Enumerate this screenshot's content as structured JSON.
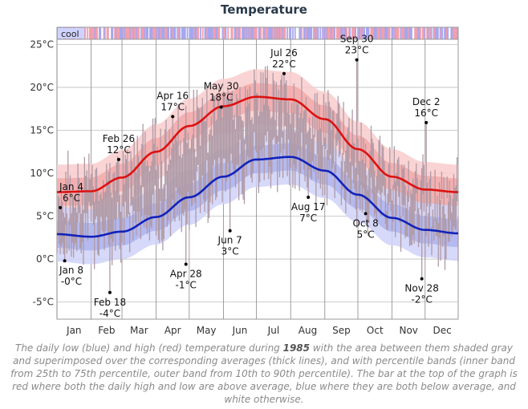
{
  "title": "Temperature",
  "caption": {
    "pre": "The daily low (blue) and high (red) temperature during ",
    "year": "1985",
    "post": " with the area between them shaded gray and superimposed over the corresponding averages (thick lines), and with percentile bands (inner band from 25th to 75th percentile, outer band from 10th to 90th percentile). The bar at the top of the graph is red where both the daily high and low are above average, blue where they are both below average, and white otherwise."
  },
  "colors": {
    "high": "#dd1111",
    "low": "#1122bb",
    "high_band_outer": "#f9cccc",
    "high_band_inner": "#f2a9a9",
    "low_band_outer": "#cfd2f8",
    "low_band_inner": "#aeb3ee",
    "daily_bar": "#b09aa6",
    "above_avg": "#f2a0ad",
    "below_avg": "#a7a7ef"
  },
  "chart_data": {
    "type": "area",
    "year": 1985,
    "y_unit": "°C",
    "ylim": [
      -7,
      27
    ],
    "y_ticks": [
      -5,
      0,
      5,
      10,
      15,
      20,
      25
    ],
    "y_tick_labels": [
      "-5°C",
      "0°C",
      "5°C",
      "10°C",
      "15°C",
      "20°C",
      "25°C"
    ],
    "x_day_range": [
      1,
      365
    ],
    "x_months": [
      "Jan",
      "Feb",
      "Mar",
      "Apr",
      "May",
      "Jun",
      "Jul",
      "Aug",
      "Sep",
      "Oct",
      "Nov",
      "Dec"
    ],
    "month_start_days": [
      1,
      32,
      60,
      91,
      121,
      152,
      182,
      213,
      244,
      274,
      305,
      335
    ],
    "grid": true,
    "legend_bar_label": "cool",
    "average_high": {
      "x": [
        1,
        32,
        60,
        91,
        121,
        152,
        182,
        213,
        244,
        274,
        305,
        335,
        365
      ],
      "y": [
        7.8,
        7.9,
        9.5,
        12.5,
        15.5,
        17.8,
        18.9,
        18.6,
        16.3,
        12.8,
        9.6,
        8.1,
        7.8
      ]
    },
    "average_low": {
      "x": [
        1,
        32,
        60,
        91,
        121,
        152,
        182,
        213,
        244,
        274,
        305,
        335,
        365
      ],
      "y": [
        2.9,
        2.6,
        3.2,
        4.9,
        7.2,
        9.6,
        11.6,
        11.9,
        10.3,
        7.5,
        4.8,
        3.4,
        3.0
      ]
    },
    "band_high_10_90": [
      3.2,
      3.2
    ],
    "band_high_25_75": [
      1.6,
      1.6
    ],
    "band_low_10_90": [
      3.2,
      3.2
    ],
    "band_low_25_75": [
      1.6,
      1.6
    ],
    "annotations": [
      {
        "month": "Jan",
        "day": 4,
        "label": "Jan 4",
        "value_label": "6°C",
        "value": 6,
        "pos": "above"
      },
      {
        "month": "Jan",
        "day": 8,
        "label": "Jan 8",
        "value_label": "-0°C",
        "value": -0.2,
        "pos": "below"
      },
      {
        "month": "Feb",
        "day": 18,
        "label": "Feb 18",
        "value_label": "-4°C",
        "value": -3.9,
        "pos": "below"
      },
      {
        "month": "Feb",
        "day": 26,
        "label": "Feb 26",
        "value_label": "12°C",
        "value": 11.6,
        "pos": "above"
      },
      {
        "month": "Apr",
        "day": 16,
        "label": "Apr 16",
        "value_label": "17°C",
        "value": 16.6,
        "pos": "above"
      },
      {
        "month": "Apr",
        "day": 28,
        "label": "Apr 28",
        "value_label": "-1°C",
        "value": -0.6,
        "pos": "below"
      },
      {
        "month": "May",
        "day": 30,
        "label": "May 30",
        "value_label": "18°C",
        "value": 17.7,
        "pos": "above"
      },
      {
        "month": "Jun",
        "day": 7,
        "label": "Jun 7",
        "value_label": "3°C",
        "value": 3.3,
        "pos": "below"
      },
      {
        "month": "Jul",
        "day": 26,
        "label": "Jul 26",
        "value_label": "22°C",
        "value": 21.6,
        "pos": "above"
      },
      {
        "month": "Aug",
        "day": 17,
        "label": "Aug 17",
        "value_label": "7°C",
        "value": 7.2,
        "pos": "below"
      },
      {
        "month": "Sep",
        "day": 30,
        "label": "Sep 30",
        "value_label": "23°C",
        "value": 23.2,
        "pos": "above"
      },
      {
        "month": "Oct",
        "day": 8,
        "label": "Oct 8",
        "value_label": "5°C",
        "value": 5.3,
        "pos": "below"
      },
      {
        "month": "Nov",
        "day": 28,
        "label": "Nov 28",
        "value_label": "-2°C",
        "value": -2.3,
        "pos": "below"
      },
      {
        "month": "Dec",
        "day": 2,
        "label": "Dec 2",
        "value_label": "16°C",
        "value": 15.9,
        "pos": "above"
      }
    ]
  }
}
